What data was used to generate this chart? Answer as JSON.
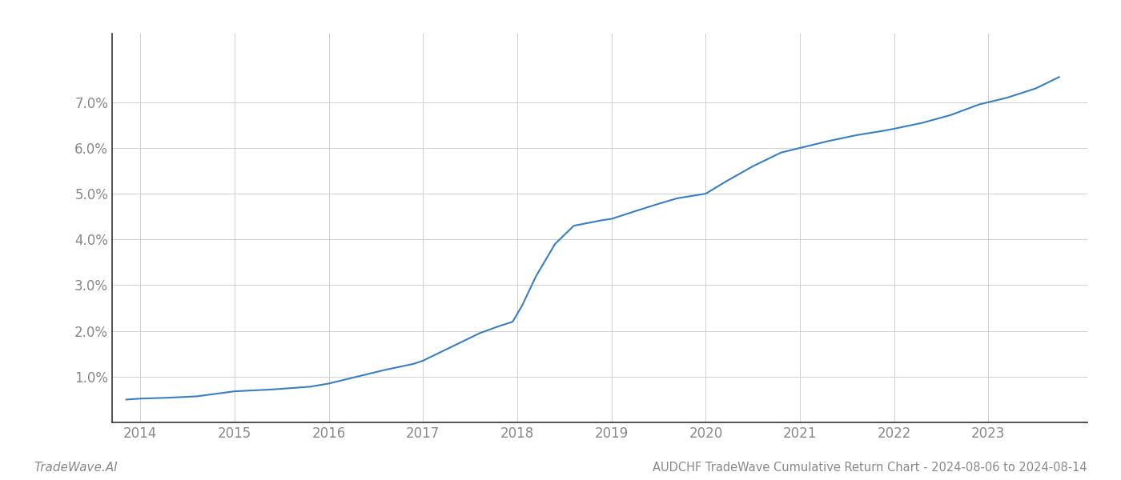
{
  "x_years": [
    2013.85,
    2014.0,
    2014.3,
    2014.6,
    2015.0,
    2015.4,
    2015.8,
    2016.0,
    2016.3,
    2016.6,
    2016.9,
    2017.0,
    2017.2,
    2017.4,
    2017.6,
    2017.8,
    2017.95,
    2018.05,
    2018.2,
    2018.4,
    2018.6,
    2018.9,
    2019.0,
    2019.3,
    2019.5,
    2019.7,
    2020.0,
    2020.2,
    2020.5,
    2020.8,
    2021.0,
    2021.3,
    2021.6,
    2021.9,
    2022.0,
    2022.3,
    2022.6,
    2022.9,
    2023.0,
    2023.2,
    2023.5,
    2023.75
  ],
  "y_values": [
    0.5,
    0.52,
    0.54,
    0.57,
    0.68,
    0.72,
    0.78,
    0.85,
    1.0,
    1.15,
    1.28,
    1.35,
    1.55,
    1.75,
    1.95,
    2.1,
    2.2,
    2.55,
    3.2,
    3.9,
    4.3,
    4.42,
    4.45,
    4.65,
    4.78,
    4.9,
    5.0,
    5.25,
    5.6,
    5.9,
    6.0,
    6.15,
    6.28,
    6.38,
    6.42,
    6.55,
    6.72,
    6.95,
    7.0,
    7.1,
    7.3,
    7.55
  ],
  "line_color": "#3a7ebf",
  "line_width": 1.5,
  "title": "AUDCHF TradeWave Cumulative Return Chart - 2024-08-06 to 2024-08-14",
  "title_fontsize": 10.5,
  "watermark_text": "TradeWave.AI",
  "watermark_fontsize": 11,
  "xlim": [
    2013.7,
    2024.05
  ],
  "ylim": [
    0.0,
    8.5
  ],
  "yticks": [
    1.0,
    2.0,
    3.0,
    4.0,
    5.0,
    6.0,
    7.0
  ],
  "xticks": [
    2014,
    2015,
    2016,
    2017,
    2018,
    2019,
    2020,
    2021,
    2022,
    2023
  ],
  "grid_color": "#d0d0d0",
  "background_color": "#ffffff",
  "tick_color": "#888888",
  "tick_fontsize": 12,
  "spine_color": "#333333",
  "left_spine_color": "#333333"
}
